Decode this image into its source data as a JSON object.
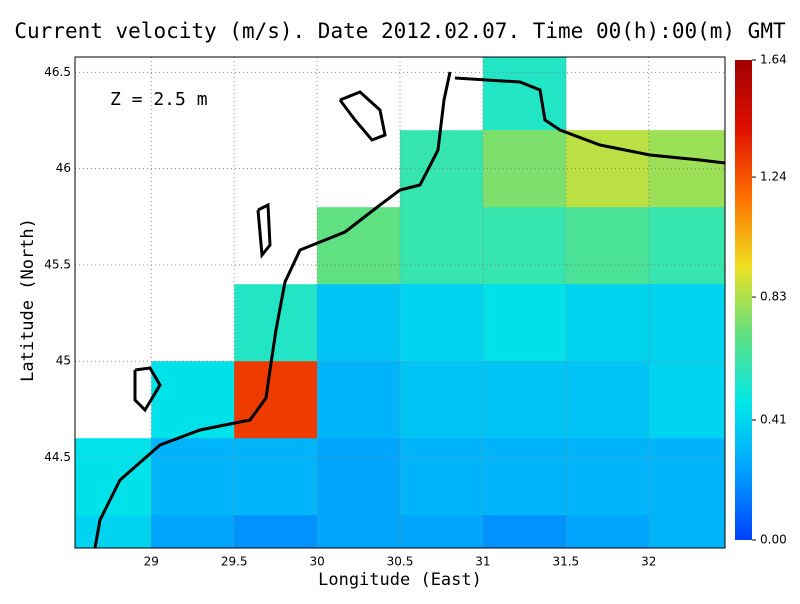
{
  "chart_data": {
    "type": "map",
    "title": "Current velocity (m/s). Date 2012.02.07. Time 00(h):00(m) GMT",
    "annotation": "Z = 2.5 m",
    "x_label": "Longitude (East)",
    "y_label": "Latitude (North)",
    "xlim": [
      28.54,
      32.46
    ],
    "ylim": [
      44.03,
      46.58
    ],
    "xticks": [
      29,
      29.5,
      30,
      30.5,
      31,
      31.5,
      32
    ],
    "yticks": [
      44.5,
      45,
      45.5,
      46,
      46.5
    ],
    "grid": true,
    "lon": [
      28.75,
      29.25,
      29.75,
      30.25,
      30.75,
      31.25,
      31.75,
      32.25
    ],
    "lat": [
      46.4,
      46.0,
      45.6,
      45.2,
      44.8,
      44.4,
      44.0
    ],
    "speed": [
      [
        null,
        null,
        null,
        null,
        null,
        0.55,
        null,
        null
      ],
      [
        null,
        null,
        null,
        null,
        0.6,
        0.75,
        0.85,
        0.8
      ],
      [
        null,
        null,
        null,
        0.7,
        0.6,
        0.6,
        0.65,
        0.6
      ],
      [
        null,
        null,
        0.55,
        0.35,
        0.4,
        0.45,
        0.4,
        0.4
      ],
      [
        null,
        0.45,
        1.3,
        0.3,
        0.35,
        0.35,
        0.35,
        0.4
      ],
      [
        0.45,
        0.3,
        0.3,
        0.25,
        0.3,
        0.3,
        0.3,
        0.3
      ],
      [
        0.4,
        0.25,
        0.2,
        0.25,
        0.25,
        0.2,
        0.25,
        0.3
      ]
    ],
    "clim": [
      0,
      1.64
    ],
    "cticks": [
      {
        "value": 0,
        "label": "0.00"
      },
      0.41,
      0.83,
      1.24,
      1.64
    ],
    "colormap": [
      "#0040ff",
      "#00a0ff",
      "#00e8e8",
      "#60e080",
      "#f0e020",
      "#ff7000",
      "#e01000",
      "#a00000"
    ]
  }
}
